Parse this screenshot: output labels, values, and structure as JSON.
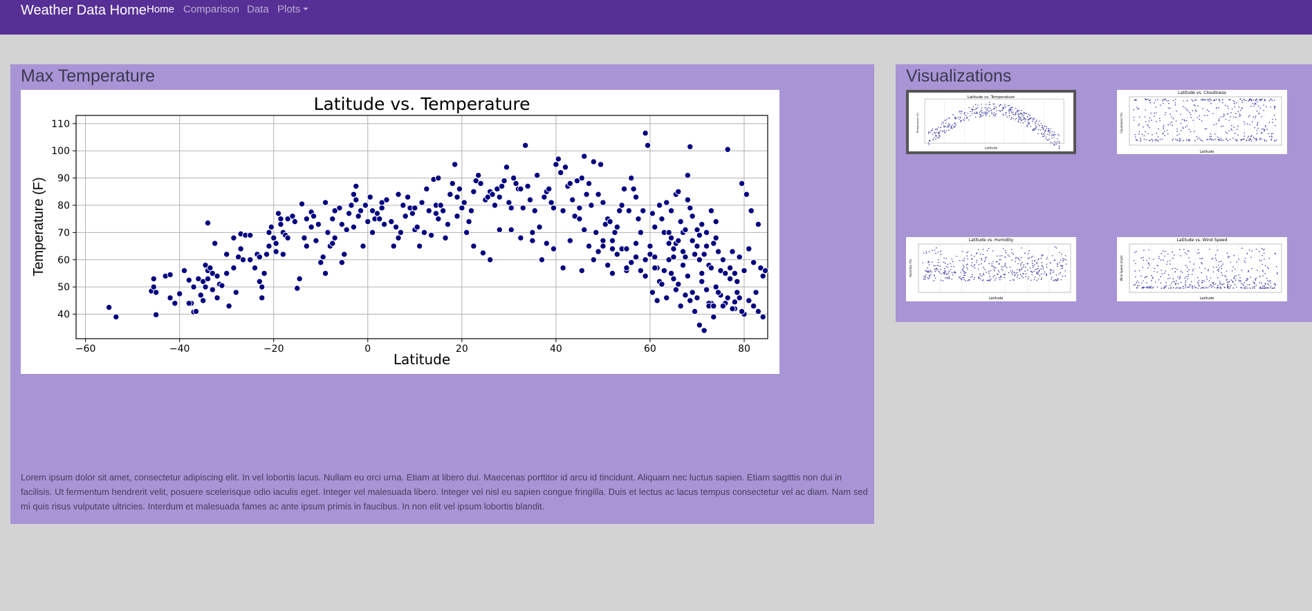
{
  "navbar": {
    "brand": "Weather Data Home",
    "links": [
      {
        "label": "Home",
        "active": true
      },
      {
        "label": "Comparison",
        "active": false
      },
      {
        "label": "Data",
        "active": false
      },
      {
        "label": "Plots",
        "active": false,
        "dropdown": true
      }
    ]
  },
  "main": {
    "heading": "Max Temperature",
    "text": "Lorem ipsum dolor sit amet, consectetur adipiscing elit. In vel lobortis lacus. Nullam eu orci urna. Etiam at libero dui. Maecenas porttitor id arcu id tincidunt. Aliquam nec luctus sapien. Etiam sagittis non dui in facilisis. Ut fermentum hendrerit velit, posuere scelerisque odio iaculis eget. Integer vel malesuada libero. Integer vel nisl eu sapien congue fringilla. Duis et lectus ac lacus tempus consectetur vel ac diam. Nam sed mi quis risus vulputate ultricies. Interdum et malesuada fames ac ante ipsum primis in faucibus. In non elit vel ipsum lobortis blandit."
  },
  "visualizations": {
    "heading": "Visualizations",
    "thumbnails": [
      {
        "title": "Latitude vs. Temperature",
        "xlabel": "Latitude",
        "ylabel": "Temperature (F)",
        "selected": true
      },
      {
        "title": "Latitude vs. Cloudiness",
        "xlabel": "Latitude",
        "ylabel": "Cloudiness (%)",
        "selected": false
      },
      {
        "title": "Latitude vs. Humidity",
        "xlabel": "Latitude",
        "ylabel": "Humidity (%)",
        "selected": false
      },
      {
        "title": "Latitude vs. Wind Speed",
        "xlabel": "Latitude",
        "ylabel": "Wind Speed (mph)",
        "selected": false
      }
    ]
  },
  "colors": {
    "navbar": "#563095",
    "panel": "#a994d6",
    "background": "#d3d3d3",
    "marker": "#00007f"
  },
  "chart_data": {
    "type": "scatter",
    "title": "Latitude vs. Temperature",
    "xlabel": "Latitude",
    "ylabel": "Temperature (F)",
    "xlim": [
      -62,
      85
    ],
    "ylim": [
      31,
      113
    ],
    "xticks": [
      -60,
      -40,
      -20,
      0,
      20,
      40,
      60,
      80
    ],
    "yticks": [
      40,
      50,
      60,
      70,
      80,
      90,
      100,
      110
    ],
    "grid": true,
    "points": [
      [
        -55,
        42.5
      ],
      [
        -53.5,
        39
      ],
      [
        -46,
        48.5
      ],
      [
        -45.5,
        50
      ],
      [
        -45,
        48
      ],
      [
        -45.5,
        53
      ],
      [
        -45,
        39.8
      ],
      [
        -43,
        54
      ],
      [
        -42,
        54.5
      ],
      [
        -42,
        46
      ],
      [
        -41,
        44
      ],
      [
        -40,
        47.5
      ],
      [
        -38,
        52.5
      ],
      [
        -37.5,
        44
      ],
      [
        -37,
        50
      ],
      [
        -37,
        40.8
      ],
      [
        -36,
        53
      ],
      [
        -35.5,
        47
      ],
      [
        -35,
        45
      ],
      [
        -35,
        52
      ],
      [
        -34.5,
        58
      ],
      [
        -34,
        56
      ],
      [
        -34,
        53
      ],
      [
        -34.5,
        50
      ],
      [
        -34,
        73.5
      ],
      [
        -33.5,
        57
      ],
      [
        -33,
        55
      ],
      [
        -33,
        49
      ],
      [
        -32.5,
        66
      ],
      [
        -32,
        46
      ],
      [
        -32,
        54
      ],
      [
        -31.5,
        51
      ],
      [
        -31,
        50.5
      ],
      [
        -30,
        55
      ],
      [
        -29.5,
        43
      ],
      [
        -28.5,
        57
      ],
      [
        -28,
        48
      ],
      [
        -27.5,
        61
      ],
      [
        -27,
        64
      ],
      [
        -27,
        69.5
      ],
      [
        -26.5,
        60
      ],
      [
        -26,
        69
      ],
      [
        -25,
        69
      ],
      [
        -25,
        60
      ],
      [
        -24,
        57
      ],
      [
        -23.5,
        62
      ],
      [
        -23,
        61
      ],
      [
        -23,
        52
      ],
      [
        -22.5,
        46
      ],
      [
        -22.5,
        50
      ],
      [
        -22,
        55
      ],
      [
        -21.5,
        62
      ],
      [
        -21,
        65
      ],
      [
        -21,
        70
      ],
      [
        -20.5,
        72
      ],
      [
        -20,
        68
      ],
      [
        -19.5,
        66
      ],
      [
        -19.5,
        63
      ],
      [
        -19,
        77
      ],
      [
        -18.5,
        75
      ],
      [
        -18.5,
        73
      ],
      [
        -18,
        70
      ],
      [
        -18,
        62
      ],
      [
        -17.5,
        69
      ],
      [
        -17,
        68
      ],
      [
        -17,
        75
      ],
      [
        -16,
        76
      ],
      [
        -15.5,
        74
      ],
      [
        -15,
        49.5
      ],
      [
        -14.5,
        53
      ],
      [
        -14,
        80.5
      ],
      [
        -13.5,
        68
      ],
      [
        -13,
        75
      ],
      [
        -12,
        72
      ],
      [
        -12,
        77.5
      ],
      [
        -11.5,
        76
      ],
      [
        -11,
        67
      ],
      [
        -10.5,
        73
      ],
      [
        -9,
        81
      ],
      [
        -9,
        55
      ],
      [
        -8.5,
        70
      ],
      [
        -8,
        65
      ],
      [
        -7.5,
        66
      ],
      [
        -7.5,
        75
      ],
      [
        -7,
        68
      ],
      [
        -7,
        78
      ],
      [
        -6,
        79
      ],
      [
        -5.5,
        73
      ],
      [
        -5.5,
        59
      ],
      [
        -5,
        62
      ],
      [
        -4.5,
        71
      ],
      [
        -4,
        77
      ],
      [
        -3.5,
        80
      ],
      [
        -3,
        84
      ],
      [
        -2.5,
        87
      ],
      [
        -2.5,
        82
      ],
      [
        -2,
        76
      ],
      [
        -1.5,
        78
      ],
      [
        -1,
        65
      ],
      [
        -0.5,
        80
      ],
      [
        0,
        74
      ],
      [
        0.5,
        83
      ],
      [
        1,
        78
      ],
      [
        1.5,
        75
      ],
      [
        2,
        77
      ],
      [
        2.5,
        75
      ],
      [
        3,
        81
      ],
      [
        3.5,
        73
      ],
      [
        4,
        82
      ],
      [
        5,
        74
      ],
      [
        5.5,
        65
      ],
      [
        6,
        72
      ],
      [
        6.5,
        68
      ],
      [
        7,
        70
      ],
      [
        7.5,
        80
      ],
      [
        8,
        76
      ],
      [
        8.5,
        83
      ],
      [
        9,
        79
      ],
      [
        9.5,
        77
      ],
      [
        10,
        71
      ],
      [
        10.5,
        72
      ],
      [
        11,
        65
      ],
      [
        11.5,
        81
      ],
      [
        12,
        70
      ],
      [
        12.5,
        86
      ],
      [
        13,
        78
      ],
      [
        13.5,
        69
      ],
      [
        14,
        89.5
      ],
      [
        14.5,
        80
      ],
      [
        15,
        75
      ],
      [
        15.5,
        80
      ],
      [
        16,
        78
      ],
      [
        16.5,
        68
      ],
      [
        17,
        73
      ],
      [
        17.5,
        84
      ],
      [
        18,
        88
      ],
      [
        18.5,
        95
      ],
      [
        19,
        76
      ],
      [
        19.5,
        86
      ],
      [
        20,
        79
      ],
      [
        20.5,
        81
      ],
      [
        21,
        70
      ],
      [
        21.5,
        74
      ],
      [
        22,
        78
      ],
      [
        22.5,
        85
      ],
      [
        23,
        89
      ],
      [
        23.5,
        91
      ],
      [
        24,
        88
      ],
      [
        24.5,
        62.5
      ],
      [
        25,
        82
      ],
      [
        25.5,
        83
      ],
      [
        26,
        85
      ],
      [
        26.5,
        84
      ],
      [
        27,
        80
      ],
      [
        27.5,
        86
      ],
      [
        28,
        83
      ],
      [
        28.5,
        87
      ],
      [
        29,
        89
      ],
      [
        29.5,
        94
      ],
      [
        30,
        81
      ],
      [
        30.5,
        79
      ],
      [
        31,
        90
      ],
      [
        31.5,
        88
      ],
      [
        32,
        86
      ],
      [
        32.5,
        86
      ],
      [
        33,
        79
      ],
      [
        33.5,
        102
      ],
      [
        34,
        87
      ],
      [
        34.5,
        82
      ],
      [
        35,
        67
      ],
      [
        35.5,
        78
      ],
      [
        36,
        91
      ],
      [
        36.5,
        72
      ],
      [
        37,
        60
      ],
      [
        37.5,
        83
      ],
      [
        38,
        85
      ],
      [
        38.5,
        86
      ],
      [
        39,
        81
      ],
      [
        39.5,
        79
      ],
      [
        40,
        95
      ],
      [
        40.5,
        97
      ],
      [
        41,
        92
      ],
      [
        41.5,
        78
      ],
      [
        42,
        94
      ],
      [
        42.5,
        87
      ],
      [
        43,
        88
      ],
      [
        43.5,
        82
      ],
      [
        44,
        76
      ],
      [
        44.5,
        89
      ],
      [
        45,
        79
      ],
      [
        45.5,
        90
      ],
      [
        46,
        98
      ],
      [
        46.5,
        84
      ],
      [
        47,
        88
      ],
      [
        47.5,
        80
      ],
      [
        48,
        96
      ],
      [
        48.5,
        70
      ],
      [
        49,
        84
      ],
      [
        49.5,
        95
      ],
      [
        50,
        81
      ],
      [
        50.5,
        73
      ],
      [
        51,
        75
      ],
      [
        51.5,
        74
      ],
      [
        52,
        67
      ],
      [
        52.5,
        70
      ],
      [
        53,
        72
      ],
      [
        53.5,
        78
      ],
      [
        54,
        80
      ],
      [
        54.5,
        86
      ],
      [
        55,
        56
      ],
      [
        55.5,
        78
      ],
      [
        56,
        90
      ],
      [
        56.5,
        86
      ],
      [
        57,
        83
      ],
      [
        57.5,
        75
      ],
      [
        58,
        70
      ],
      [
        58.5,
        78
      ],
      [
        59,
        106.5
      ],
      [
        59.5,
        102
      ],
      [
        60,
        65
      ],
      [
        60.5,
        77
      ],
      [
        61,
        72
      ],
      [
        61.5,
        57
      ],
      [
        62,
        80
      ],
      [
        62.5,
        75
      ],
      [
        63,
        70
      ],
      [
        63.5,
        81
      ],
      [
        64,
        66
      ],
      [
        64.5,
        78
      ],
      [
        65,
        64
      ],
      [
        65.5,
        84
      ],
      [
        66,
        85
      ],
      [
        66.5,
        74
      ],
      [
        67,
        70
      ],
      [
        67.5,
        61
      ],
      [
        68,
        91
      ],
      [
        68.5,
        101.5
      ],
      [
        69,
        67
      ],
      [
        69.5,
        62
      ],
      [
        70,
        65
      ],
      [
        70.5,
        60
      ],
      [
        71,
        55
      ],
      [
        71.5,
        62
      ],
      [
        72,
        70
      ],
      [
        72.5,
        58
      ],
      [
        73,
        57
      ],
      [
        73.5,
        66
      ],
      [
        74,
        74
      ],
      [
        74.5,
        63
      ],
      [
        75,
        56
      ],
      [
        75.5,
        60
      ],
      [
        76,
        55
      ],
      [
        76.5,
        100.5
      ],
      [
        77,
        57
      ],
      [
        77.5,
        63
      ],
      [
        78,
        55
      ],
      [
        78.5,
        52
      ],
      [
        79,
        61
      ],
      [
        79.5,
        88
      ],
      [
        80,
        56
      ],
      [
        80.5,
        84
      ],
      [
        81,
        64
      ],
      [
        81.5,
        78
      ],
      [
        82,
        59
      ],
      [
        82.5,
        48
      ],
      [
        83,
        73
      ],
      [
        83.5,
        57
      ],
      [
        84,
        54
      ],
      [
        84.5,
        56
      ],
      [
        45,
        75
      ],
      [
        46,
        71
      ],
      [
        47,
        65
      ],
      [
        48,
        60
      ],
      [
        49,
        63
      ],
      [
        50,
        67
      ],
      [
        51,
        58
      ],
      [
        52,
        55
      ],
      [
        53,
        62
      ],
      [
        54,
        64
      ],
      [
        55,
        57
      ],
      [
        56,
        59
      ],
      [
        57,
        61
      ],
      [
        58,
        56
      ],
      [
        59,
        54
      ],
      [
        60,
        62
      ],
      [
        61,
        57
      ],
      [
        62,
        52
      ],
      [
        63,
        56
      ],
      [
        64,
        60
      ],
      [
        65,
        53
      ],
      [
        66,
        51
      ],
      [
        67,
        58
      ],
      [
        68,
        54
      ],
      [
        69,
        48
      ],
      [
        70,
        46
      ],
      [
        71,
        52
      ],
      [
        72,
        49
      ],
      [
        73,
        44
      ],
      [
        74,
        50
      ],
      [
        75,
        47
      ],
      [
        76,
        44
      ],
      [
        77,
        53
      ],
      [
        78,
        42
      ],
      [
        79,
        46
      ],
      [
        80,
        40
      ],
      [
        81,
        45
      ],
      [
        82,
        43
      ],
      [
        83,
        41
      ],
      [
        84,
        39
      ],
      [
        60.5,
        48
      ],
      [
        61.5,
        45
      ],
      [
        62.5,
        51
      ],
      [
        63.5,
        46
      ],
      [
        64.5,
        55
      ],
      [
        65.5,
        49
      ],
      [
        66.5,
        43
      ],
      [
        67.5,
        47
      ],
      [
        68.5,
        45
      ],
      [
        69.5,
        41
      ],
      [
        70.5,
        36
      ],
      [
        71.5,
        34
      ],
      [
        72.5,
        44
      ],
      [
        73.5,
        39
      ],
      [
        74.5,
        48
      ],
      [
        75.5,
        43
      ],
      [
        76.5,
        46
      ],
      [
        77.5,
        42
      ],
      [
        78.5,
        48
      ],
      [
        79.5,
        41
      ],
      [
        64,
        70
      ],
      [
        64.5,
        68
      ],
      [
        65,
        61
      ],
      [
        65.5,
        66
      ],
      [
        66,
        67
      ],
      [
        67,
        63
      ],
      [
        67.5,
        71
      ],
      [
        68,
        82
      ],
      [
        68.5,
        79
      ],
      [
        69,
        76
      ],
      [
        70,
        71
      ],
      [
        70.5,
        69
      ],
      [
        71,
        73
      ],
      [
        72,
        65
      ],
      [
        73,
        78
      ],
      [
        74,
        68
      ],
      [
        72.5,
        43
      ],
      [
        73.5,
        43
      ],
      [
        77.5,
        42
      ],
      [
        78,
        44.5
      ],
      [
        -38,
        44
      ],
      [
        -36.5,
        41
      ],
      [
        -39,
        56
      ],
      [
        -30,
        62
      ],
      [
        -28.5,
        68
      ],
      [
        -25,
        60
      ],
      [
        -13,
        65
      ],
      [
        -10,
        59
      ],
      [
        -9.5,
        61
      ],
      [
        -3,
        72
      ],
      [
        1,
        70
      ],
      [
        3,
        79
      ],
      [
        6.5,
        84
      ],
      [
        10,
        79
      ],
      [
        14.5,
        77
      ],
      [
        15,
        90
      ],
      [
        19,
        83
      ],
      [
        22.5,
        65
      ],
      [
        26,
        60
      ],
      [
        28,
        71
      ],
      [
        30.5,
        71
      ],
      [
        32.5,
        68
      ],
      [
        35,
        70
      ],
      [
        38,
        66
      ],
      [
        39.5,
        64
      ],
      [
        41.5,
        57
      ],
      [
        43,
        67
      ],
      [
        45.5,
        56
      ],
      [
        50,
        65
      ],
      [
        52,
        64
      ],
      [
        55,
        64
      ],
      [
        57,
        66
      ],
      [
        59,
        60
      ],
      [
        61,
        61
      ]
    ]
  }
}
